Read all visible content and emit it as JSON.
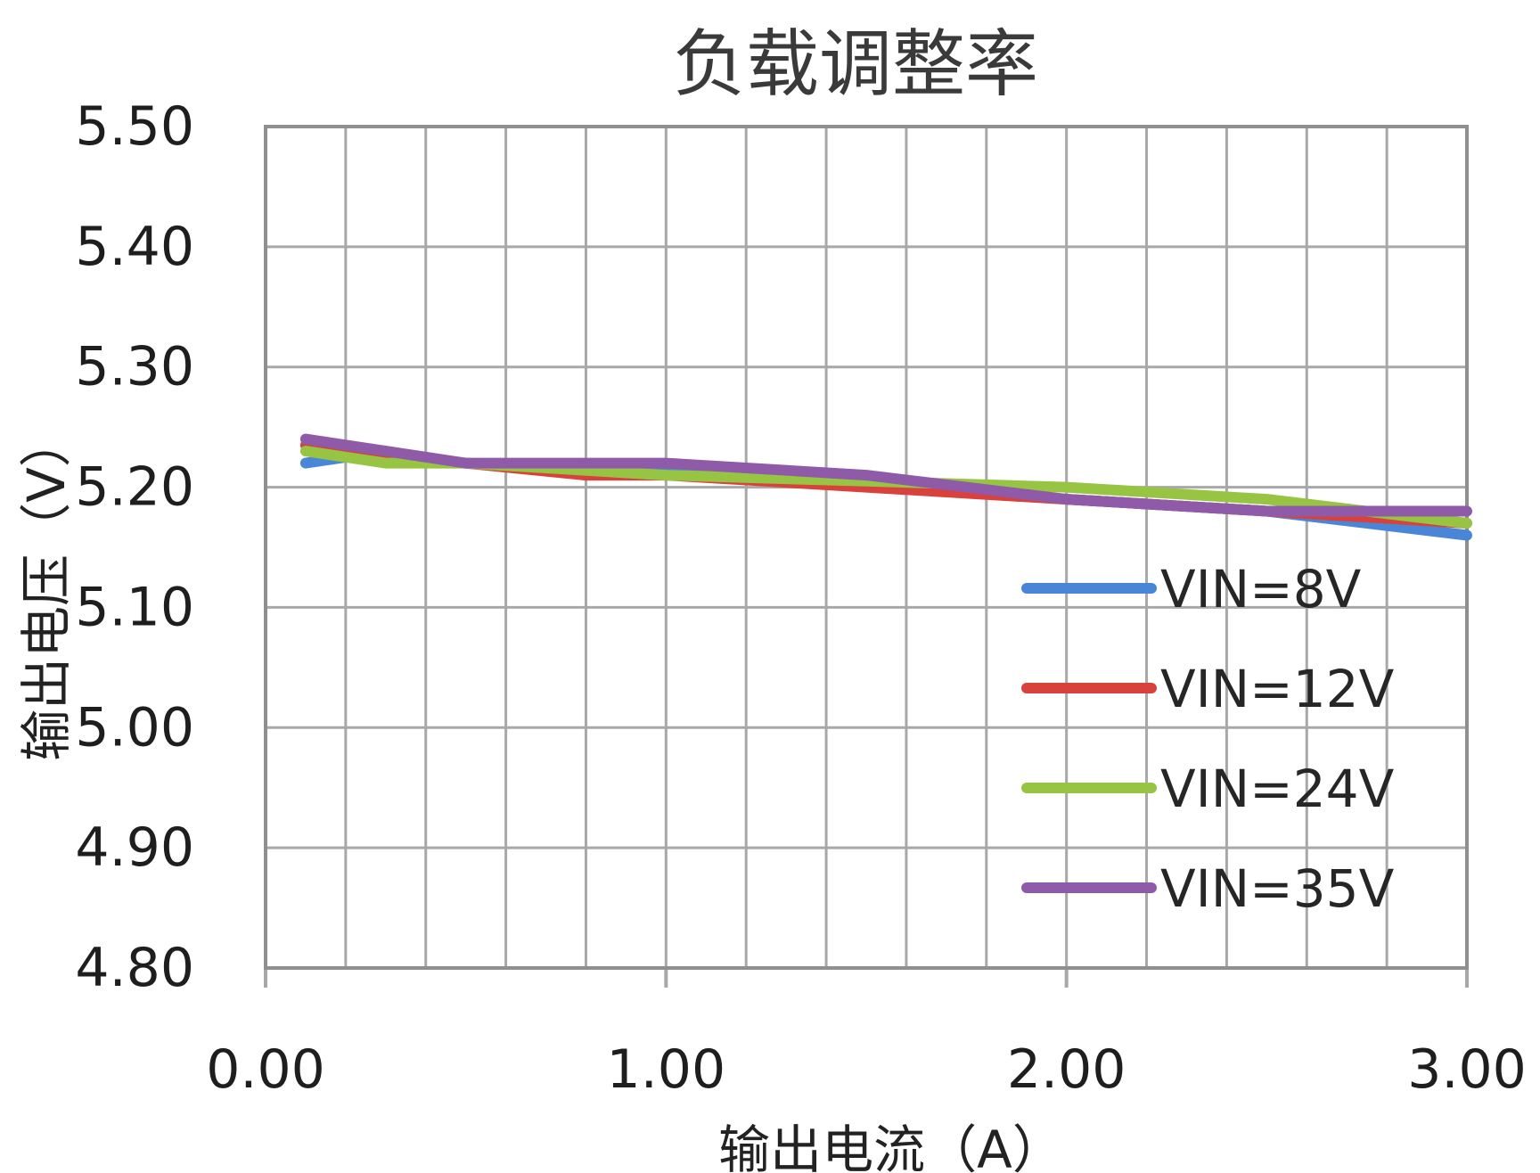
{
  "chart_data": {
    "type": "line",
    "title": "负载调整率",
    "xlabel": "输出电流（A）",
    "ylabel": "输出电压（V）",
    "xlim": [
      0,
      3
    ],
    "ylim": [
      4.8,
      5.5
    ],
    "xticks": [
      0,
      1,
      2,
      3
    ],
    "xtick_labels": [
      "0.00",
      "1.00",
      "2.00",
      "3.00"
    ],
    "yticks": [
      4.8,
      4.9,
      5.0,
      5.1,
      5.2,
      5.3,
      5.4,
      5.5
    ],
    "ytick_labels": [
      "4.80",
      "4.90",
      "5.00",
      "5.10",
      "5.20",
      "5.30",
      "5.40",
      "5.50"
    ],
    "x_grid_step": 0.2,
    "grid": true,
    "legend_position": "right",
    "series": [
      {
        "name": "VIN=8V",
        "color": "#4a86d8",
        "x": [
          0.1,
          0.2,
          0.5,
          1.0,
          1.5,
          2.0,
          2.5,
          3.0
        ],
        "y": [
          5.22,
          5.225,
          5.22,
          5.215,
          5.205,
          5.19,
          5.18,
          5.16
        ]
      },
      {
        "name": "VIN=12V",
        "color": "#d9413c",
        "x": [
          0.1,
          0.3,
          0.5,
          0.8,
          1.0,
          1.5,
          2.0,
          2.5,
          3.0
        ],
        "y": [
          5.235,
          5.225,
          5.22,
          5.21,
          5.21,
          5.2,
          5.19,
          5.18,
          5.17
        ]
      },
      {
        "name": "VIN=24V",
        "color": "#97c543",
        "x": [
          0.1,
          0.3,
          0.5,
          1.0,
          1.5,
          2.0,
          2.5,
          3.0
        ],
        "y": [
          5.23,
          5.22,
          5.22,
          5.21,
          5.205,
          5.2,
          5.19,
          5.17
        ]
      },
      {
        "name": "VIN=35V",
        "color": "#8f5ba9",
        "x": [
          0.1,
          0.3,
          0.5,
          1.0,
          1.5,
          2.0,
          2.5,
          3.0
        ],
        "y": [
          5.24,
          5.23,
          5.22,
          5.22,
          5.21,
          5.19,
          5.18,
          5.18
        ]
      }
    ]
  }
}
